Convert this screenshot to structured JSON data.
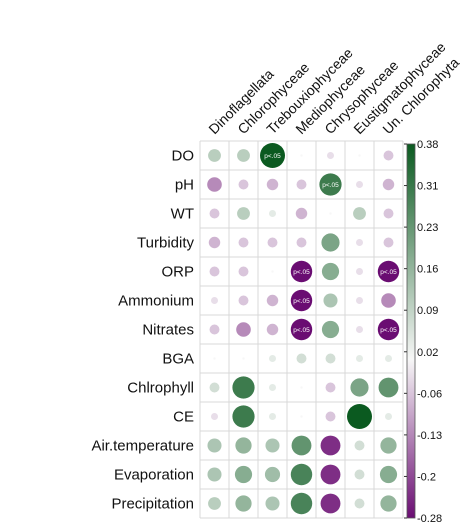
{
  "chart_data": {
    "type": "heatmap",
    "subtype": "correlogram-circles",
    "columns": [
      "Dinoflagellata",
      "Chlorophyceae",
      "Trebouxiophyceae",
      "Mediophyceae",
      "Chrysophyceae",
      "Eustigmatophyceae",
      "Un. Chlorophyta"
    ],
    "rows": [
      "DO",
      "pH",
      "WT",
      "Turbidity",
      "ORP",
      "Ammonium",
      "Nitrates",
      "BGA",
      "Chlrophyll",
      "CE",
      "Air.temperature",
      "Evaporation",
      "Precipitation"
    ],
    "values": [
      [
        0.1,
        0.1,
        0.38,
        0.0,
        -0.03,
        0.0,
        -0.06
      ],
      [
        -0.13,
        -0.06,
        -0.08,
        -0.06,
        0.3,
        -0.03,
        -0.08
      ],
      [
        -0.06,
        0.1,
        0.03,
        -0.08,
        0.0,
        0.1,
        -0.06
      ],
      [
        -0.08,
        -0.06,
        -0.06,
        -0.06,
        0.2,
        -0.03,
        -0.06
      ],
      [
        -0.06,
        -0.06,
        0.0,
        -0.28,
        0.18,
        -0.03,
        -0.28
      ],
      [
        -0.03,
        -0.06,
        -0.08,
        -0.28,
        0.12,
        -0.03,
        -0.13
      ],
      [
        -0.06,
        -0.13,
        -0.08,
        -0.28,
        0.18,
        -0.03,
        -0.28
      ],
      [
        0.0,
        0.0,
        0.03,
        0.06,
        0.06,
        0.03,
        0.03
      ],
      [
        0.06,
        0.3,
        0.03,
        0.0,
        -0.06,
        0.2,
        0.24
      ],
      [
        -0.03,
        0.3,
        0.03,
        0.0,
        -0.06,
        0.38,
        0.03
      ],
      [
        0.12,
        0.16,
        0.12,
        0.24,
        -0.24,
        0.06,
        0.16
      ],
      [
        0.12,
        0.18,
        0.14,
        0.28,
        -0.24,
        0.06,
        0.18
      ],
      [
        0.1,
        0.16,
        0.12,
        0.28,
        -0.24,
        0.06,
        0.16
      ]
    ],
    "significance_label": "p<.05",
    "significant_cells": [
      [
        0,
        2
      ],
      [
        1,
        4
      ],
      [
        4,
        3
      ],
      [
        4,
        6
      ],
      [
        5,
        3
      ],
      [
        6,
        3
      ],
      [
        6,
        6
      ]
    ],
    "color_range": [
      -0.28,
      0.38
    ],
    "colorbar_ticks": [
      "0.38",
      "0.31",
      "0.23",
      "0.16",
      "0.09",
      "0.02",
      "-0.06",
      "-0.13",
      "-0.2",
      "-0.28"
    ],
    "colors": {
      "low": "#6a0d72",
      "mid": "#f7f7f7",
      "high": "#0b5a20"
    }
  }
}
